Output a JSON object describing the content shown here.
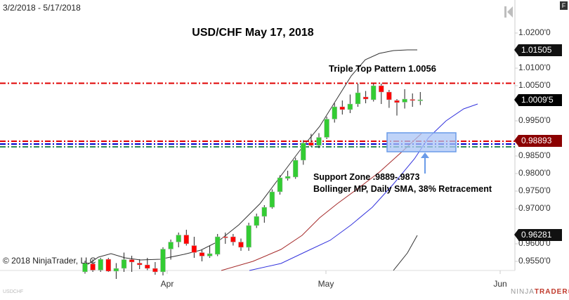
{
  "header": {
    "date_range": "3/2/2018 - 5/17/2018",
    "panel_button": "F",
    "nav_icon": "skip-to-start-icon"
  },
  "footer": {
    "copyright": "© 2018 NinjaTrader, LLC",
    "instrument": "USDCHF",
    "logo_part1": "NINJA",
    "logo_part2": "TRADER",
    "logo_mark": "®"
  },
  "annotations": {
    "triple_top": "Triple Top Pattern 1.0056",
    "support_line1": "Support Zone .9889-.9873",
    "support_line2": "Bollinger MP, Daily SMA, 38% Retracement"
  },
  "price_tags": {
    "upper_band": "1.01505",
    "last_price": "1.0009'5",
    "support_line": "0.98893",
    "lower_band": "0.96281"
  },
  "colors": {
    "up_candle": "#33cc33",
    "down_candle": "#ff0000",
    "resistance_line": "#e00000",
    "support_red": "#e00000",
    "support_blue": "#0000cc",
    "support_green": "#2e8b57",
    "bollinger_line": "#333333",
    "sma_red": "#a52a2a",
    "sma_blue": "#3333dd",
    "zone_fill": "#a9c4f5",
    "zone_border": "#6a9be8",
    "tag_dark": "#111111",
    "tag_red": "#8b0000"
  },
  "chart_data": {
    "type": "candlestick",
    "title": "USD/CHF May 17, 2018",
    "xlabel": "",
    "ylabel": "",
    "x_ticks": [
      "Apr",
      "May",
      "Jun"
    ],
    "y_ticks": [
      "1.0200'0",
      "1.0100'0",
      "1.0050'0",
      "0.9950'0",
      "0.9850'0",
      "0.9800'0",
      "0.9750'0",
      "0.9700'0",
      "0.9600'0",
      "0.9550'0"
    ],
    "ylim": [
      0.952,
      1.029
    ],
    "grid": false,
    "candles": [
      {
        "o": 0.952,
        "h": 0.9552,
        "l": 0.9515,
        "c": 0.9545
      },
      {
        "o": 0.9543,
        "h": 0.9556,
        "l": 0.952,
        "c": 0.9525
      },
      {
        "o": 0.9525,
        "h": 0.956,
        "l": 0.952,
        "c": 0.9556
      },
      {
        "o": 0.9556,
        "h": 0.956,
        "l": 0.952,
        "c": 0.9522
      },
      {
        "o": 0.9522,
        "h": 0.9545,
        "l": 0.95,
        "c": 0.953
      },
      {
        "o": 0.953,
        "h": 0.9575,
        "l": 0.952,
        "c": 0.9555
      },
      {
        "o": 0.9555,
        "h": 0.9566,
        "l": 0.952,
        "c": 0.9548
      },
      {
        "o": 0.9545,
        "h": 0.9556,
        "l": 0.9528,
        "c": 0.954
      },
      {
        "o": 0.954,
        "h": 0.956,
        "l": 0.9525,
        "c": 0.953
      },
      {
        "o": 0.953,
        "h": 0.9548,
        "l": 0.9512,
        "c": 0.952
      },
      {
        "o": 0.952,
        "h": 0.959,
        "l": 0.951,
        "c": 0.9585
      },
      {
        "o": 0.9585,
        "h": 0.9612,
        "l": 0.9555,
        "c": 0.9605
      },
      {
        "o": 0.9605,
        "h": 0.9632,
        "l": 0.959,
        "c": 0.9625
      },
      {
        "o": 0.9625,
        "h": 0.964,
        "l": 0.9595,
        "c": 0.96
      },
      {
        "o": 0.9595,
        "h": 0.962,
        "l": 0.956,
        "c": 0.9575
      },
      {
        "o": 0.9575,
        "h": 0.9582,
        "l": 0.955,
        "c": 0.9565
      },
      {
        "o": 0.9565,
        "h": 0.9595,
        "l": 0.956,
        "c": 0.9572
      },
      {
        "o": 0.957,
        "h": 0.9628,
        "l": 0.9565,
        "c": 0.962
      },
      {
        "o": 0.962,
        "h": 0.9632,
        "l": 0.96,
        "c": 0.9617
      },
      {
        "o": 0.962,
        "h": 0.9628,
        "l": 0.9595,
        "c": 0.9605
      },
      {
        "o": 0.9605,
        "h": 0.9615,
        "l": 0.958,
        "c": 0.959
      },
      {
        "o": 0.959,
        "h": 0.966,
        "l": 0.958,
        "c": 0.9652
      },
      {
        "o": 0.9652,
        "h": 0.9686,
        "l": 0.9645,
        "c": 0.9678
      },
      {
        "o": 0.9678,
        "h": 0.971,
        "l": 0.966,
        "c": 0.9704
      },
      {
        "o": 0.9704,
        "h": 0.9755,
        "l": 0.97,
        "c": 0.9748
      },
      {
        "o": 0.9748,
        "h": 0.9795,
        "l": 0.974,
        "c": 0.9788
      },
      {
        "o": 0.9786,
        "h": 0.9808,
        "l": 0.978,
        "c": 0.9792
      },
      {
        "o": 0.979,
        "h": 0.9845,
        "l": 0.9785,
        "c": 0.9838
      },
      {
        "o": 0.9838,
        "h": 0.9895,
        "l": 0.9825,
        "c": 0.9887
      },
      {
        "o": 0.9888,
        "h": 0.9913,
        "l": 0.9876,
        "c": 0.988
      },
      {
        "o": 0.988,
        "h": 0.9915,
        "l": 0.9872,
        "c": 0.9903
      },
      {
        "o": 0.9903,
        "h": 0.9962,
        "l": 0.9898,
        "c": 0.9955
      },
      {
        "o": 0.9955,
        "h": 1.0,
        "l": 0.9945,
        "c": 0.999
      },
      {
        "o": 0.999,
        "h": 1.0008,
        "l": 0.9968,
        "c": 0.9982
      },
      {
        "o": 0.9982,
        "h": 1.0025,
        "l": 0.9972,
        "c": 0.9998
      },
      {
        "o": 0.9998,
        "h": 1.0056,
        "l": 0.999,
        "c": 1.003
      },
      {
        "o": 1.0018,
        "h": 1.0035,
        "l": 1.0,
        "c": 1.0012
      },
      {
        "o": 1.001,
        "h": 1.0056,
        "l": 1.0005,
        "c": 1.005
      },
      {
        "o": 1.005,
        "h": 1.0056,
        "l": 0.9998,
        "c": 1.0032
      },
      {
        "o": 1.0032,
        "h": 1.0038,
        "l": 0.9987,
        "c": 1.001
      },
      {
        "o": 1.0008,
        "h": 1.0012,
        "l": 0.9965,
        "c": 1.0002
      },
      {
        "o": 1.0003,
        "h": 1.004,
        "l": 0.9985,
        "c": 1.0012
      },
      {
        "o": 1.0011,
        "h": 1.0028,
        "l": 0.999,
        "c": 1.001
      },
      {
        "o": 1.001,
        "h": 1.0032,
        "l": 0.9995,
        "c": 1.001
      }
    ],
    "overlays": {
      "resistance_level": 1.0056,
      "support_levels": [
        0.9889,
        0.9882,
        0.9873
      ],
      "support_zone": [
        0.9873,
        0.9889
      ]
    },
    "series": [
      {
        "name": "Bollinger upper",
        "values_note": "black line rising from ~0.955 to 1.01505"
      },
      {
        "name": "Bollinger midpoint",
        "values_note": "red line rising to ~0.9889 region"
      },
      {
        "name": "Daily SMA",
        "values_note": "blue line rising to ~0.9990"
      },
      {
        "name": "Bollinger lower",
        "values_note": "black line ending 0.96281"
      }
    ]
  }
}
